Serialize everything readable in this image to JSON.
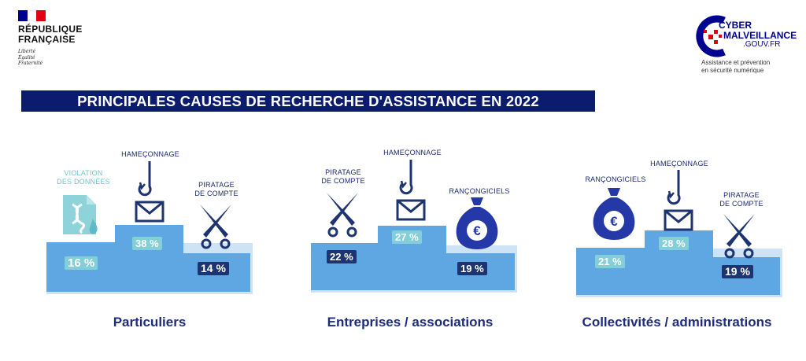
{
  "header": {
    "flag_colors": [
      "#000091",
      "#ffffff",
      "#e1000f"
    ],
    "republique": [
      "RÉPUBLIQUE",
      "FRANÇAISE"
    ],
    "motto": [
      "Liberté",
      "Égalité",
      "Fraternité"
    ],
    "cyber_logo": {
      "line1": "CYBER",
      "line2": "MALVEILLANCE",
      "line3": ".GOUV.FR",
      "subtitle": [
        "Assistance et prévention",
        "en sécurité numérique"
      ]
    }
  },
  "title": "PRINCIPALES CAUSES DE RECHERCHE D'ASSISTANCE EN 2022",
  "groups": [
    {
      "name": "Particuliers",
      "left": {
        "label": [
          "VIOLATION",
          "DES DONNÉES"
        ],
        "value": "16 %",
        "icon": "data-breach-document-icon"
      },
      "center": {
        "label": [
          "HAMEÇONNAGE"
        ],
        "value": "38 %",
        "icon": "phishing-hook-envelope-icon"
      },
      "right": {
        "label": [
          "PIRATAGE",
          "DE COMPTE"
        ],
        "value": "14 %",
        "icon": "crossed-swords-icon"
      }
    },
    {
      "name": "Entreprises / associations",
      "left": {
        "label": [
          "PIRATAGE",
          "DE COMPTE"
        ],
        "value": "22 %",
        "icon": "crossed-swords-icon"
      },
      "center": {
        "label": [
          "HAMEÇONNAGE"
        ],
        "value": "27 %",
        "icon": "phishing-hook-envelope-icon"
      },
      "right": {
        "label": [
          "RANÇONGICIELS"
        ],
        "value": "19 %",
        "icon": "euro-money-bag-icon"
      }
    },
    {
      "name": "Collectivités / administrations",
      "left": {
        "label": [
          "RANÇONGICIELS"
        ],
        "value": "21 %",
        "icon": "euro-money-bag-icon"
      },
      "center": {
        "label": [
          "HAMEÇONNAGE"
        ],
        "value": "28 %",
        "icon": "phishing-hook-envelope-icon"
      },
      "right": {
        "label": [
          "PIRATAGE",
          "DE COMPTE"
        ],
        "value": "19 %",
        "icon": "crossed-swords-icon"
      }
    }
  ],
  "colors": {
    "navy": "#1d3470",
    "banner": "#0b1b6e",
    "step": "#5fa7e3",
    "step_bg": "#cfe3f7",
    "teal": "#83cfd8"
  }
}
